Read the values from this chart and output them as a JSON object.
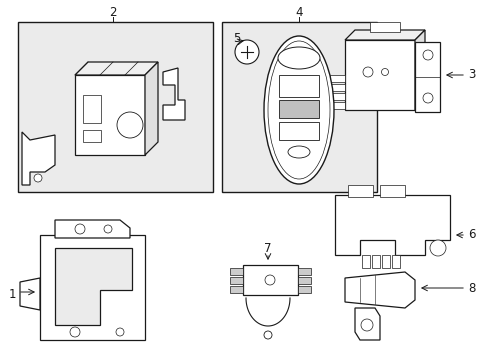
{
  "background_color": "#ffffff",
  "line_color": "#1a1a1a",
  "fill_light": "#f0f0f0",
  "fill_box": "#ebebeb",
  "fig_width": 4.89,
  "fig_height": 3.6,
  "dpi": 100
}
